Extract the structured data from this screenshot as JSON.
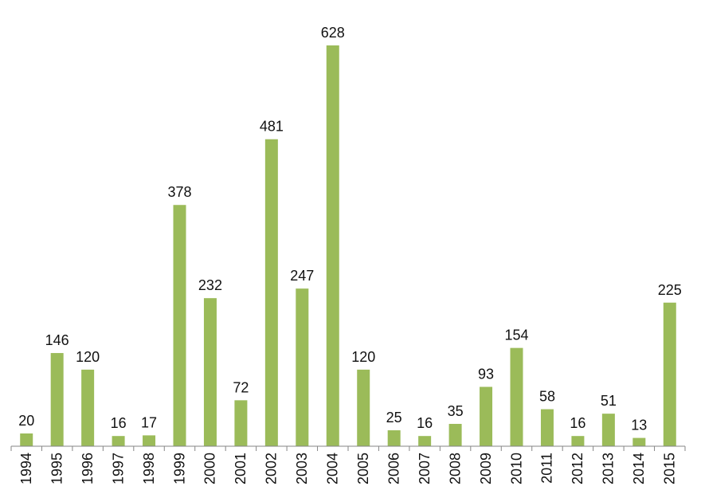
{
  "chart_data": {
    "type": "bar",
    "title": "",
    "xlabel": "",
    "ylabel": "",
    "ylim": [
      0,
      650
    ],
    "grid": false,
    "legend": "none",
    "categories": [
      "1994",
      "1995",
      "1996",
      "1997",
      "1998",
      "1999",
      "2000",
      "2001",
      "2002",
      "2003",
      "2004",
      "2005",
      "2006",
      "2007",
      "2008",
      "2009",
      "2010",
      "2011",
      "2012",
      "2013",
      "2014",
      "2015"
    ],
    "values": [
      20,
      146,
      120,
      16,
      17,
      378,
      232,
      72,
      481,
      247,
      628,
      120,
      25,
      16,
      35,
      93,
      154,
      58,
      16,
      51,
      13,
      225
    ],
    "data_labels": [
      "20",
      "146",
      "120",
      "16",
      "17",
      "378",
      "232",
      "72",
      "481",
      "247",
      "628",
      "120",
      "25",
      "16",
      "35",
      "93",
      "154",
      "58",
      "16",
      "51",
      "13",
      "225"
    ],
    "bar_color": "#9BBB59"
  }
}
